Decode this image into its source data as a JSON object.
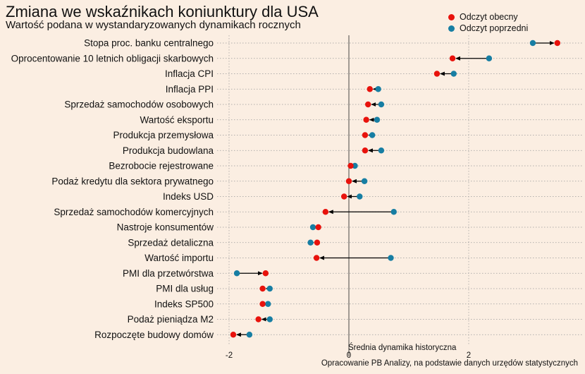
{
  "title": "Zmiana we wskaźnikach koniunktury dla USA",
  "subtitle": "Wartość podana w wystandaryzowanych dynamikach rocznych",
  "legend": {
    "current_label": "Odczyt obecny",
    "previous_label": "Odczyt poprzedni",
    "placement": "top-right"
  },
  "caption": "Opracowanie  PB Analizy, na podstawie danych urzędów statystycznych",
  "chart_data": {
    "type": "scatter",
    "style": "dumbbell-with-arrows",
    "colors": {
      "current": "#e8120c",
      "previous": "#177ea3"
    },
    "grid": true,
    "xlim": [
      -2.1,
      3.8
    ],
    "x_ticks": [
      -2,
      0,
      2
    ],
    "x_tick_labels": [
      "-2",
      "0",
      "2"
    ],
    "reference_line": {
      "x": 0,
      "label": "Średnia dynamika historyczna"
    },
    "categories": [
      "Stopa proc. banku centralnego",
      "Oprocentowanie 10 letnich obligacji skarbowych",
      "Inflacja CPI",
      "Inflacja PPI",
      "Sprzedaż samochodów osobowych",
      "Wartość eksportu",
      "Produkcja przemysłowa",
      "Produkcja budowlana",
      "Bezrobocie rejestrowane",
      "Podaż kredytu dla sektora prywatnego",
      "Indeks USD",
      "Sprzedaż samochodów komercyjnych",
      "Nastroje konsumentów",
      "Sprzedaż detaliczna",
      "Wartość importu",
      "PMI dla przetwórstwa",
      "PMI dla usług",
      "Indeks SP500",
      "Podaż pieniądza M2",
      "Rozpoczęte budowy domów"
    ],
    "series": [
      {
        "name": "Odczyt obecny",
        "values": [
          3.48,
          1.73,
          1.47,
          0.35,
          0.32,
          0.29,
          0.27,
          0.27,
          0.03,
          0.0,
          -0.08,
          -0.39,
          -0.51,
          -0.53,
          -0.54,
          -1.39,
          -1.44,
          -1.44,
          -1.51,
          -1.93
        ]
      },
      {
        "name": "Odczyt poprzedni",
        "values": [
          3.07,
          2.34,
          1.75,
          0.49,
          0.54,
          0.47,
          0.39,
          0.54,
          0.1,
          0.26,
          0.18,
          0.75,
          -0.6,
          -0.64,
          0.7,
          -1.87,
          -1.32,
          -1.35,
          -1.32,
          -1.66
        ]
      }
    ]
  }
}
